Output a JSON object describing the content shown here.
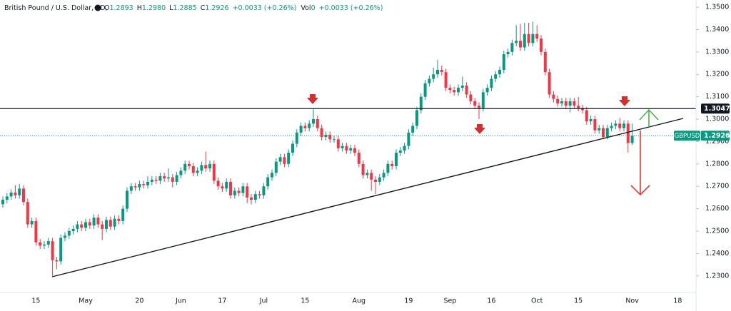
{
  "chart_data": {
    "type": "candlestick",
    "header": {
      "title": "British Pound / U.S. Dollar, 1D,",
      "ohlc": [
        {
          "label": "O",
          "value": "1.2893"
        },
        {
          "label": "H",
          "value": "1.2980"
        },
        {
          "label": "L",
          "value": "1.2885"
        },
        {
          "label": "C",
          "value": "1.2926"
        }
      ],
      "change": "+0.0033 (+0.26%)",
      "volume": {
        "label": "Vol",
        "value": "0"
      },
      "volume_change": "+0.0033 (+0.26%)"
    },
    "symbol": "GBPUSD",
    "up_color": "#089981",
    "down_color": "#f23645",
    "categories": [
      null,
      null,
      null,
      null,
      null,
      null,
      null,
      null,
      "15",
      null,
      null,
      null,
      null,
      null,
      null,
      null,
      null,
      null,
      null,
      null,
      "May",
      null,
      null,
      null,
      null,
      null,
      null,
      null,
      null,
      null,
      null,
      null,
      null,
      "20",
      null,
      null,
      null,
      null,
      null,
      null,
      null,
      null,
      null,
      "Jun",
      null,
      null,
      null,
      null,
      null,
      null,
      null,
      null,
      null,
      "17",
      null,
      null,
      null,
      null,
      null,
      null,
      null,
      null,
      null,
      "Jul",
      null,
      null,
      null,
      null,
      null,
      null,
      null,
      null,
      null,
      "15",
      null,
      null,
      null,
      null,
      null,
      null,
      null,
      null,
      null,
      null,
      null,
      null,
      "Aug",
      null,
      null,
      null,
      null,
      null,
      null,
      null,
      null,
      null,
      null,
      null,
      "19",
      null,
      null,
      null,
      null,
      null,
      null,
      null,
      null,
      null,
      "Sep",
      null,
      null,
      null,
      null,
      null,
      null,
      null,
      null,
      null,
      "16",
      null,
      null,
      null,
      null,
      null,
      null,
      null,
      null,
      null,
      null,
      "Oct",
      null,
      null,
      null,
      null,
      null,
      null,
      null,
      null,
      null,
      "15",
      null,
      null,
      null,
      null,
      null,
      null,
      null,
      null,
      null,
      null,
      null,
      null,
      "Nov",
      null,
      null,
      null,
      null,
      null,
      null,
      null,
      null,
      null,
      null,
      "18",
      null,
      null,
      null,
      null
    ],
    "open": [
      1.262,
      1.264,
      1.2655,
      1.2672,
      1.266,
      1.269,
      1.263,
      1.253,
      1.2545,
      1.245,
      1.2435,
      1.244,
      1.2455,
      1.237,
      1.2365,
      1.247,
      1.248,
      1.25,
      1.251,
      1.253,
      1.2515,
      1.254,
      1.2525,
      1.256,
      1.253,
      1.251,
      1.255,
      1.252,
      1.2555,
      1.2545,
      1.26,
      1.268,
      1.27,
      1.2695,
      1.271,
      1.2705,
      1.272,
      1.273,
      1.2725,
      1.2745,
      1.2735,
      1.274,
      1.272,
      1.275,
      1.277,
      1.28,
      1.279,
      1.276,
      1.277,
      1.2795,
      1.278,
      1.28,
      1.2725,
      1.27,
      1.269,
      1.272,
      1.266,
      1.268,
      1.267,
      1.27,
      1.265,
      1.264,
      1.2665,
      1.266,
      1.27,
      1.274,
      1.276,
      1.281,
      1.283,
      1.28,
      1.285,
      1.289,
      1.294,
      1.297,
      1.296,
      1.298,
      1.3,
      1.296,
      1.292,
      1.293,
      1.291,
      1.291,
      1.287,
      1.288,
      1.286,
      1.287,
      1.285,
      1.28,
      1.275,
      1.276,
      1.273,
      1.272,
      1.274,
      1.276,
      1.28,
      1.279,
      1.285,
      1.286,
      1.288,
      1.294,
      1.297,
      1.304,
      1.31,
      1.316,
      1.318,
      1.32,
      1.322,
      1.321,
      1.314,
      1.313,
      1.312,
      1.314,
      1.315,
      1.311,
      1.308,
      1.306,
      1.305,
      1.312,
      1.314,
      1.318,
      1.32,
      1.322,
      1.329,
      1.33,
      1.334,
      1.335,
      1.332,
      1.338,
      1.334,
      1.338,
      1.336,
      1.33,
      1.321,
      1.311,
      1.309,
      1.307,
      1.308,
      1.306,
      1.308,
      1.306,
      1.305,
      1.304,
      1.299,
      1.3,
      1.295,
      1.296,
      1.292,
      1.296,
      1.297,
      1.298,
      1.296,
      1.298,
      1.2893,
      null,
      null,
      null,
      null,
      null,
      null,
      null,
      null,
      null,
      null,
      null,
      null,
      null,
      null,
      null
    ],
    "high": [
      1.2655,
      1.267,
      1.2687,
      1.2705,
      1.271,
      1.2705,
      1.2645,
      1.256,
      1.256,
      1.2465,
      1.2455,
      1.247,
      1.247,
      1.2385,
      1.2485,
      1.2495,
      1.2515,
      1.2525,
      1.2545,
      1.2545,
      1.2555,
      1.2555,
      1.2575,
      1.2575,
      1.2545,
      1.2565,
      1.2565,
      1.257,
      1.257,
      1.2615,
      1.2695,
      1.2715,
      1.2715,
      1.2725,
      1.2725,
      1.2745,
      1.2745,
      1.2745,
      1.276,
      1.276,
      1.278,
      1.2755,
      1.2765,
      1.2785,
      1.2815,
      1.2815,
      1.2805,
      1.2785,
      1.281,
      1.2855,
      1.2815,
      1.2815,
      1.274,
      1.2715,
      1.2735,
      1.2735,
      1.2695,
      1.2695,
      1.2715,
      1.2715,
      1.2665,
      1.268,
      1.268,
      1.2715,
      1.2755,
      1.2775,
      1.2825,
      1.2845,
      1.2845,
      1.2865,
      1.2905,
      1.2955,
      1.2985,
      1.2985,
      1.2995,
      1.3045,
      1.3015,
      1.2975,
      1.2945,
      1.2945,
      1.2925,
      1.2925,
      1.2895,
      1.2895,
      1.2885,
      1.2885,
      1.2865,
      1.2815,
      1.2775,
      1.2775,
      1.2745,
      1.2755,
      1.2775,
      1.2815,
      1.2815,
      1.2865,
      1.2875,
      1.2895,
      1.2955,
      1.2985,
      1.3055,
      1.3115,
      1.3175,
      1.3195,
      1.323,
      1.3265,
      1.324,
      1.3225,
      1.3155,
      1.3145,
      1.3155,
      1.319,
      1.3165,
      1.3125,
      1.3095,
      1.3075,
      1.3135,
      1.3155,
      1.3195,
      1.3215,
      1.3235,
      1.3305,
      1.3315,
      1.3355,
      1.342,
      1.3425,
      1.343,
      1.343,
      1.3435,
      1.342,
      1.3375,
      1.3315,
      1.3225,
      1.3125,
      1.3105,
      1.3095,
      1.3095,
      1.3095,
      1.3095,
      1.31,
      1.3065,
      1.3055,
      1.3015,
      1.3015,
      1.2975,
      1.2975,
      1.2975,
      1.2985,
      1.2995,
      1.3005,
      1.2995,
      1.2995,
      1.298,
      null,
      null,
      null,
      null,
      null,
      null,
      null,
      null,
      null,
      null,
      null,
      null,
      null,
      null,
      null
    ],
    "low": [
      1.2605,
      1.2625,
      1.264,
      1.2645,
      1.2645,
      1.2615,
      1.2515,
      1.2515,
      1.2435,
      1.242,
      1.242,
      1.2425,
      1.23,
      1.233,
      1.235,
      1.2455,
      1.2465,
      1.2485,
      1.2495,
      1.25,
      1.25,
      1.251,
      1.251,
      1.2515,
      1.246,
      1.2495,
      1.2505,
      1.2505,
      1.253,
      1.253,
      1.2585,
      1.2665,
      1.268,
      1.268,
      1.269,
      1.269,
      1.2705,
      1.271,
      1.271,
      1.272,
      1.272,
      1.2695,
      1.2705,
      1.2735,
      1.2755,
      1.2775,
      1.2745,
      1.2745,
      1.2755,
      1.2765,
      1.2765,
      1.271,
      1.2685,
      1.2675,
      1.2675,
      1.2645,
      1.2645,
      1.2655,
      1.2655,
      1.2625,
      1.262,
      1.2625,
      1.2645,
      1.2645,
      1.2685,
      1.2725,
      1.2745,
      1.2795,
      1.2785,
      1.2785,
      1.2835,
      1.2875,
      1.2925,
      1.2945,
      1.2945,
      1.2965,
      1.2945,
      1.2905,
      1.2905,
      1.2895,
      1.2895,
      1.2855,
      1.2855,
      1.2845,
      1.2845,
      1.2835,
      1.2785,
      1.2735,
      1.2735,
      1.268,
      1.2665,
      1.2705,
      1.2725,
      1.2745,
      1.2775,
      1.2775,
      1.2835,
      1.2845,
      1.2865,
      1.2925,
      1.2955,
      1.3025,
      1.3085,
      1.3145,
      1.3165,
      1.3185,
      1.3195,
      1.3125,
      1.3115,
      1.3105,
      1.3105,
      1.3125,
      1.3095,
      1.3065,
      1.3045,
      1.3,
      1.3035,
      1.3105,
      1.3125,
      1.3165,
      1.3185,
      1.3205,
      1.3275,
      1.3285,
      1.3325,
      1.3305,
      1.3305,
      1.3325,
      1.3325,
      1.3345,
      1.3285,
      1.3195,
      1.3095,
      1.3075,
      1.3055,
      1.3055,
      1.3045,
      1.303,
      1.3045,
      1.3035,
      1.3025,
      1.2975,
      1.2975,
      1.2935,
      1.2935,
      1.291,
      1.291,
      1.2945,
      1.2955,
      1.2945,
      1.2945,
      1.285,
      1.2885,
      null,
      null,
      null,
      null,
      null,
      null,
      null,
      null,
      null,
      null,
      null,
      null,
      null,
      null,
      null
    ],
    "close": [
      1.264,
      1.2655,
      1.2672,
      1.266,
      1.269,
      1.263,
      1.253,
      1.2545,
      1.245,
      1.2435,
      1.244,
      1.2455,
      1.237,
      1.2365,
      1.247,
      1.248,
      1.25,
      1.251,
      1.253,
      1.2515,
      1.254,
      1.2525,
      1.256,
      1.253,
      1.251,
      1.255,
      1.252,
      1.2555,
      1.2545,
      1.26,
      1.268,
      1.27,
      1.2695,
      1.271,
      1.2705,
      1.272,
      1.273,
      1.2725,
      1.2745,
      1.2735,
      1.274,
      1.272,
      1.275,
      1.277,
      1.28,
      1.279,
      1.276,
      1.277,
      1.2795,
      1.278,
      1.28,
      1.2725,
      1.27,
      1.269,
      1.272,
      1.266,
      1.268,
      1.267,
      1.27,
      1.265,
      1.264,
      1.2665,
      1.266,
      1.27,
      1.274,
      1.276,
      1.281,
      1.283,
      1.28,
      1.285,
      1.289,
      1.294,
      1.297,
      1.296,
      1.298,
      1.3,
      1.296,
      1.292,
      1.293,
      1.291,
      1.291,
      1.287,
      1.288,
      1.286,
      1.287,
      1.285,
      1.28,
      1.275,
      1.276,
      1.273,
      1.272,
      1.274,
      1.276,
      1.28,
      1.279,
      1.285,
      1.286,
      1.288,
      1.294,
      1.297,
      1.304,
      1.31,
      1.316,
      1.318,
      1.32,
      1.322,
      1.321,
      1.314,
      1.313,
      1.312,
      1.314,
      1.315,
      1.311,
      1.308,
      1.306,
      1.305,
      1.312,
      1.314,
      1.318,
      1.32,
      1.322,
      1.329,
      1.33,
      1.334,
      1.335,
      1.332,
      1.338,
      1.334,
      1.338,
      1.336,
      1.33,
      1.321,
      1.311,
      1.309,
      1.307,
      1.308,
      1.306,
      1.308,
      1.306,
      1.305,
      1.304,
      1.299,
      1.3,
      1.295,
      1.296,
      1.292,
      1.296,
      1.297,
      1.298,
      1.296,
      1.298,
      1.2893,
      1.2926,
      null,
      null,
      null,
      null,
      null,
      null,
      null,
      null,
      null,
      null,
      null,
      null,
      null,
      null,
      null
    ],
    "ylim": [
      1.2242,
      1.3532
    ],
    "yticks": [
      {
        "value": 1.23,
        "label": "1.2300"
      },
      {
        "value": 1.24,
        "label": "1.2400"
      },
      {
        "value": 1.25,
        "label": "1.2500"
      },
      {
        "value": 1.26,
        "label": "1.2600"
      },
      {
        "value": 1.27,
        "label": "1.2700"
      },
      {
        "value": 1.28,
        "label": "1.2800"
      },
      {
        "value": 1.29,
        "label": "1.2900"
      },
      {
        "value": 1.3,
        "label": "1.3000"
      },
      {
        "value": 1.31,
        "label": "1.3100"
      },
      {
        "value": 1.32,
        "label": "1.3200"
      },
      {
        "value": 1.33,
        "label": "1.3300"
      },
      {
        "value": 1.34,
        "label": "1.3400"
      },
      {
        "value": 1.35,
        "label": "1.3500"
      }
    ],
    "hline": {
      "value": 1.3047,
      "color": "#131722"
    }
  }
}
